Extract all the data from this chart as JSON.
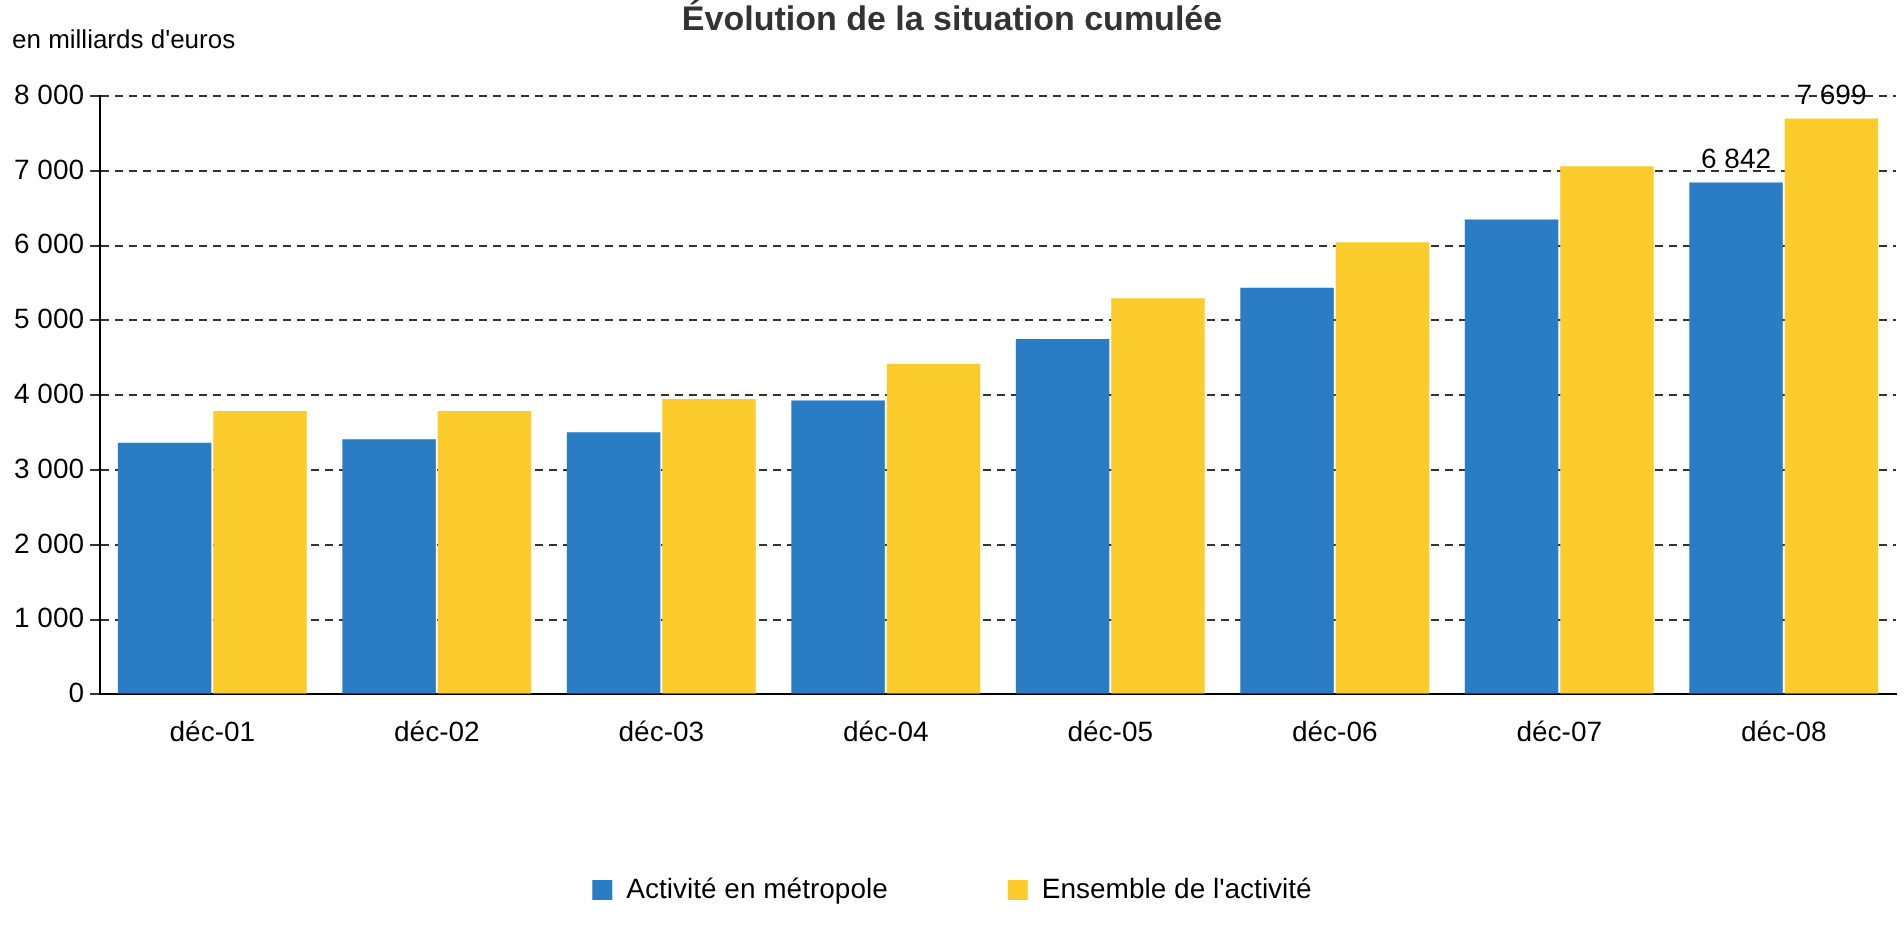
{
  "chart_data": {
    "type": "bar",
    "title": "Évolution de la situation cumulée",
    "ylabel": "en milliards d'euros",
    "categories": [
      "déc-01",
      "déc-02",
      "déc-03",
      "déc-04",
      "déc-05",
      "déc-06",
      "déc-07",
      "déc-08"
    ],
    "series": [
      {
        "name": "Activité en métropole",
        "color": "#2a7cc4",
        "values": [
          3365,
          3410,
          3505,
          3930,
          4750,
          5435,
          6350,
          6842
        ],
        "value_labels": [
          null,
          null,
          null,
          null,
          null,
          null,
          null,
          "6 842"
        ]
      },
      {
        "name": "Ensemble de l'activité",
        "color": "#fccb2c",
        "values": [
          3790,
          3790,
          3950,
          4420,
          5295,
          6045,
          7060,
          7699
        ],
        "value_labels": [
          null,
          null,
          null,
          null,
          null,
          null,
          null,
          "7 699"
        ]
      }
    ],
    "ylim": [
      0,
      8000
    ],
    "yticks": [
      {
        "value": 0,
        "label": "0"
      },
      {
        "value": 1000,
        "label": "1 000"
      },
      {
        "value": 2000,
        "label": "2 000"
      },
      {
        "value": 3000,
        "label": "3 000"
      },
      {
        "value": 4000,
        "label": "4 000"
      },
      {
        "value": 5000,
        "label": "5 000"
      },
      {
        "value": 6000,
        "label": "6 000"
      },
      {
        "value": 7000,
        "label": "7 000"
      },
      {
        "value": 8000,
        "label": "8 000"
      }
    ],
    "grid": "y",
    "line_style": "dashed",
    "legend": "bottom"
  }
}
